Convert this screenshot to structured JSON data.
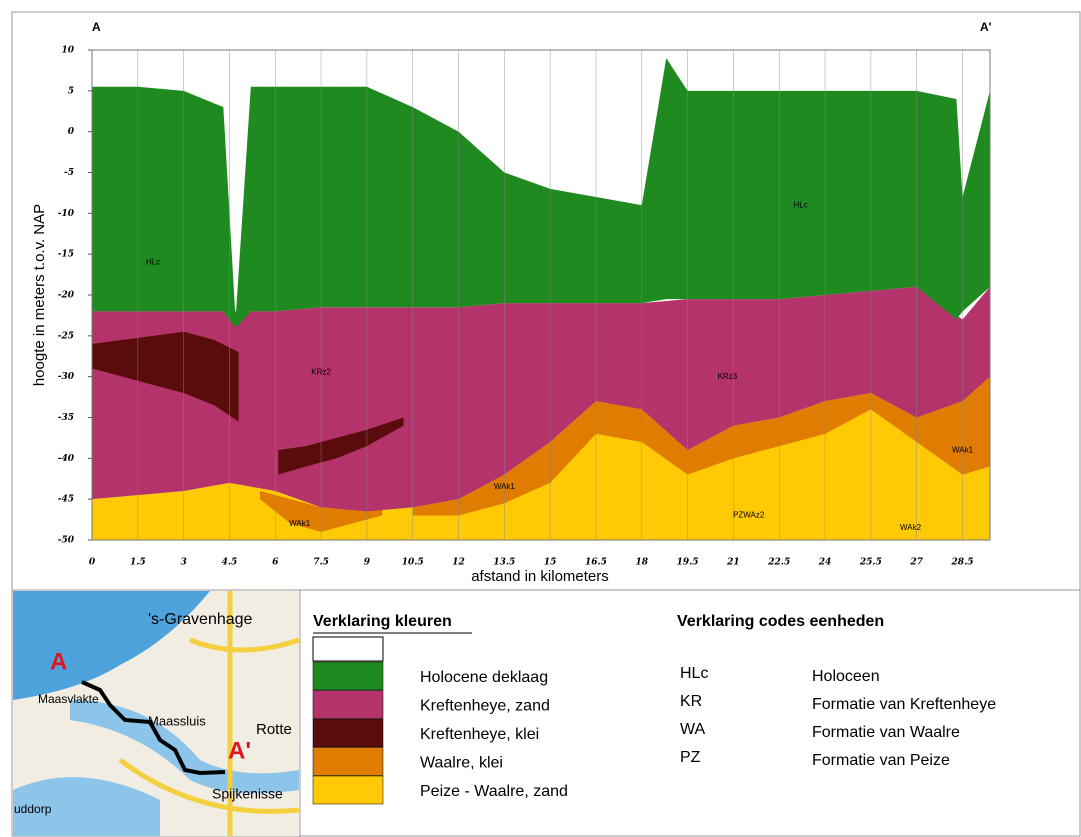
{
  "chart_data": {
    "type": "bands",
    "start_label": "A",
    "end_label": "A'",
    "ylabel": "hoogte in meters t.o.v. NAP",
    "xlabel": "afstand in kilometers",
    "xlim": [
      0,
      29.4
    ],
    "ylim": [
      -50,
      10
    ],
    "xticks": [
      0,
      1.5,
      3,
      4.5,
      6,
      7.5,
      9,
      10.5,
      12,
      13.5,
      15,
      16.5,
      18,
      19.5,
      21,
      22.5,
      24,
      25.5,
      27,
      28.5
    ],
    "yticks": [
      10,
      5,
      0,
      -5,
      -10,
      -15,
      -20,
      -25,
      -30,
      -35,
      -40,
      -45,
      -50
    ],
    "grid": true,
    "series": [
      {
        "name": "Holocene deklaag",
        "color": "#1f8a1f",
        "x": [
          0,
          1.5,
          3,
          4.3,
          4.7,
          5.2,
          6,
          7.5,
          9,
          10.5,
          12,
          13.5,
          15,
          16.5,
          18,
          18.8,
          19.5,
          21,
          22.5,
          24,
          25.5,
          27,
          28.3,
          28.5,
          29.4
        ],
        "values": [
          5.5,
          5.5,
          5,
          3,
          -23,
          5.5,
          5.5,
          5.5,
          5.5,
          3,
          0,
          -5,
          -7,
          -8,
          -9,
          9,
          5,
          5,
          5,
          5,
          5,
          5,
          4,
          -8,
          5
        ],
        "base": [
          -22,
          -22,
          -22,
          -22,
          -24,
          -22,
          -22,
          -21.5,
          -21.5,
          -21.5,
          -21.5,
          -21,
          -21,
          -21,
          -21,
          -20.5,
          -20.5,
          -20.5,
          -20.5,
          -20,
          -19.5,
          -19,
          -23,
          -22,
          -19
        ]
      },
      {
        "name": "Kreftenheye, zand",
        "color": "#b3336a",
        "x": [
          0,
          1.5,
          3,
          4.5,
          6,
          7.5,
          9,
          10.5,
          12,
          13.5,
          15,
          16.5,
          18,
          19.5,
          21,
          22.5,
          24,
          25.5,
          27,
          28.5,
          29.4
        ],
        "values": [
          -22,
          -22,
          -22,
          -22,
          -22,
          -21.5,
          -21.5,
          -21.5,
          -21.5,
          -21,
          -21,
          -21,
          -21,
          -20.5,
          -20.5,
          -20.5,
          -20,
          -19.5,
          -19,
          -23,
          -19
        ],
        "base": [
          -45,
          -44.5,
          -44,
          -43,
          -44,
          -46,
          -46.5,
          -46,
          -45,
          -42,
          -38,
          -33,
          -34,
          -39,
          -36,
          -35,
          -33,
          -32,
          -35,
          -33,
          -30
        ]
      },
      {
        "name": "Kreftenheye, klei",
        "color": "#5a0b0b",
        "x": [
          0,
          1,
          2,
          3,
          4,
          4.8,
          5.5,
          6.1,
          7,
          8,
          9,
          10.2
        ],
        "values": [
          -26,
          -25.5,
          -25,
          -24.5,
          -25.5,
          -27,
          null,
          -39,
          -38.5,
          -37.5,
          -36.5,
          -35
        ],
        "base": [
          -29,
          -30,
          -31,
          -32,
          -33.5,
          -35.5,
          null,
          -42,
          -41,
          -40,
          -38.5,
          -36
        ]
      },
      {
        "name": "Waalre, klei",
        "color": "#e07c00",
        "x": [
          5.5,
          6.5,
          7.5,
          8.5,
          9.5,
          10,
          10.5,
          12,
          13.5,
          15,
          16.5,
          18,
          19.5,
          21,
          22.5,
          24,
          25.5,
          27,
          28.5,
          29.4
        ],
        "values": [
          -44,
          -45,
          -46,
          -46.3,
          -46.3,
          null,
          -46,
          -45,
          -42,
          -38,
          -33,
          -34,
          -39,
          -36,
          -35,
          -33,
          -32,
          -35,
          -33,
          -30
        ],
        "base": [
          -45,
          -48,
          -49,
          -48,
          -47,
          null,
          -47,
          -47,
          -45.5,
          -43,
          -37,
          -38,
          -42,
          -40,
          -38.5,
          -37,
          -34,
          -38,
          -42,
          -41
        ]
      },
      {
        "name": "Peize - Waalre, zand",
        "color": "#ffca05",
        "x": [
          0,
          1.5,
          3,
          4.5,
          6,
          7.5,
          9,
          10.5,
          12,
          13.5,
          15,
          16.5,
          18,
          19.5,
          21,
          22.5,
          24,
          25.5,
          27,
          28.5,
          29.4
        ],
        "values": [
          -45,
          -44.5,
          -44,
          -43,
          -44,
          -46,
          -46.5,
          -46,
          -45,
          -42,
          -38,
          -33,
          -34,
          -39,
          -36,
          -35,
          -33,
          -32,
          -35,
          -33,
          -30
        ],
        "base": [
          -50,
          -50,
          -50,
          -50,
          -50,
          -50,
          -50,
          -50,
          -50,
          -50,
          -50,
          -50,
          -50,
          -50,
          -50,
          -50,
          -50,
          -50,
          -50,
          -50,
          -50
        ]
      }
    ],
    "annotations": [
      {
        "text": "HLc",
        "x": 2,
        "y": -16
      },
      {
        "text": "HLc",
        "x": 23.2,
        "y": -9
      },
      {
        "text": "KRz2",
        "x": 7.5,
        "y": -29.5
      },
      {
        "text": "KRz3",
        "x": 20.8,
        "y": -30
      },
      {
        "text": "WAk1",
        "x": 13.5,
        "y": -43.5
      },
      {
        "text": "WAk1",
        "x": 6.8,
        "y": -48
      },
      {
        "text": "WAk1",
        "x": 28.5,
        "y": -39
      },
      {
        "text": "PZWAz2",
        "x": 21.5,
        "y": -47
      },
      {
        "text": "WAk2",
        "x": 26.8,
        "y": -48.5
      }
    ]
  },
  "legend": {
    "title": "Verklaring kleuren"
  },
  "codes": {
    "title": "Verklaring codes eenheden",
    "rows": [
      [
        "HLc",
        "Holoceen"
      ],
      [
        "KR",
        "Formatie van Kreftenheye"
      ],
      [
        "WA",
        "Formatie van Waalre"
      ],
      [
        "PZ",
        "Formatie van Peize"
      ]
    ]
  },
  "map": {
    "labels": [
      "'s-Gravenhage",
      "Maasvlakte",
      "Maassluis",
      "Rotte",
      "Spijkenisse",
      "uddorp"
    ],
    "start": "A",
    "end": "A'"
  }
}
